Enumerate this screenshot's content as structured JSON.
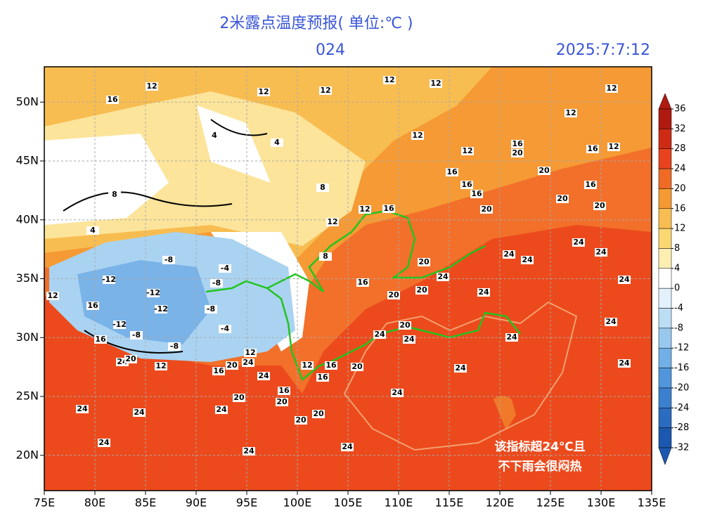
{
  "header": {
    "title": "2米露点温度预报( 单位:℃ )",
    "lead": "024",
    "date": "2025:7:7:12"
  },
  "map": {
    "xlim": [
      75,
      135
    ],
    "ylim": [
      17,
      53
    ],
    "xticks": [
      {
        "value": 75,
        "label": "75E"
      },
      {
        "value": 80,
        "label": "80E"
      },
      {
        "value": 85,
        "label": "85E"
      },
      {
        "value": 90,
        "label": "90E"
      },
      {
        "value": 95,
        "label": "95E"
      },
      {
        "value": 100,
        "label": "100E"
      },
      {
        "value": 105,
        "label": "105E"
      },
      {
        "value": 110,
        "label": "110E"
      },
      {
        "value": 115,
        "label": "115E"
      },
      {
        "value": 120,
        "label": "120E"
      },
      {
        "value": 125,
        "label": "125E"
      },
      {
        "value": 130,
        "label": "130E"
      },
      {
        "value": 135,
        "label": "135E"
      }
    ],
    "yticks": [
      {
        "value": 20,
        "label": "20N"
      },
      {
        "value": 25,
        "label": "25N"
      },
      {
        "value": 30,
        "label": "30N"
      },
      {
        "value": 35,
        "label": "35N"
      },
      {
        "value": 40,
        "label": "40N"
      },
      {
        "value": 45,
        "label": "45N"
      },
      {
        "value": 50,
        "label": "50N"
      }
    ],
    "contour_labels": [
      12,
      16,
      12,
      12,
      12,
      12,
      12,
      12,
      12,
      12,
      16,
      20,
      16,
      12,
      20,
      16,
      16,
      16,
      16,
      20,
      20,
      20,
      16,
      12,
      12,
      24,
      24,
      24,
      24,
      20,
      24,
      24,
      16,
      20,
      20,
      24,
      24,
      20,
      24,
      24,
      24,
      24,
      24,
      20,
      16,
      16,
      24,
      24,
      20,
      20,
      20,
      16,
      24,
      20,
      24,
      24,
      24,
      24,
      24,
      24,
      20,
      12,
      16,
      20,
      24,
      12,
      12,
      -8,
      -12,
      -12,
      -12,
      -12,
      -8,
      -8,
      -8,
      -4,
      -8,
      -4,
      16,
      12,
      16,
      4,
      8,
      4,
      4,
      8,
      8
    ]
  },
  "colorbar": {
    "ticks": [
      36,
      32,
      28,
      24,
      20,
      16,
      12,
      8,
      4,
      0,
      -4,
      -8,
      -12,
      -16,
      -20,
      -24,
      -28,
      -32
    ],
    "colors": [
      "#b01a10",
      "#cf2a14",
      "#e8421e",
      "#f06a24",
      "#f59a32",
      "#f8bd50",
      "#fbd772",
      "#fdeeb2",
      "#ffffff",
      "#e2f1fb",
      "#bcdef5",
      "#98c8ee",
      "#72afe6",
      "#5196dd",
      "#3b80cf",
      "#2a6cc0",
      "#1c58b0"
    ]
  },
  "annotation": [
    "该指标超24℃且",
    "不下雨会很闷热"
  ]
}
